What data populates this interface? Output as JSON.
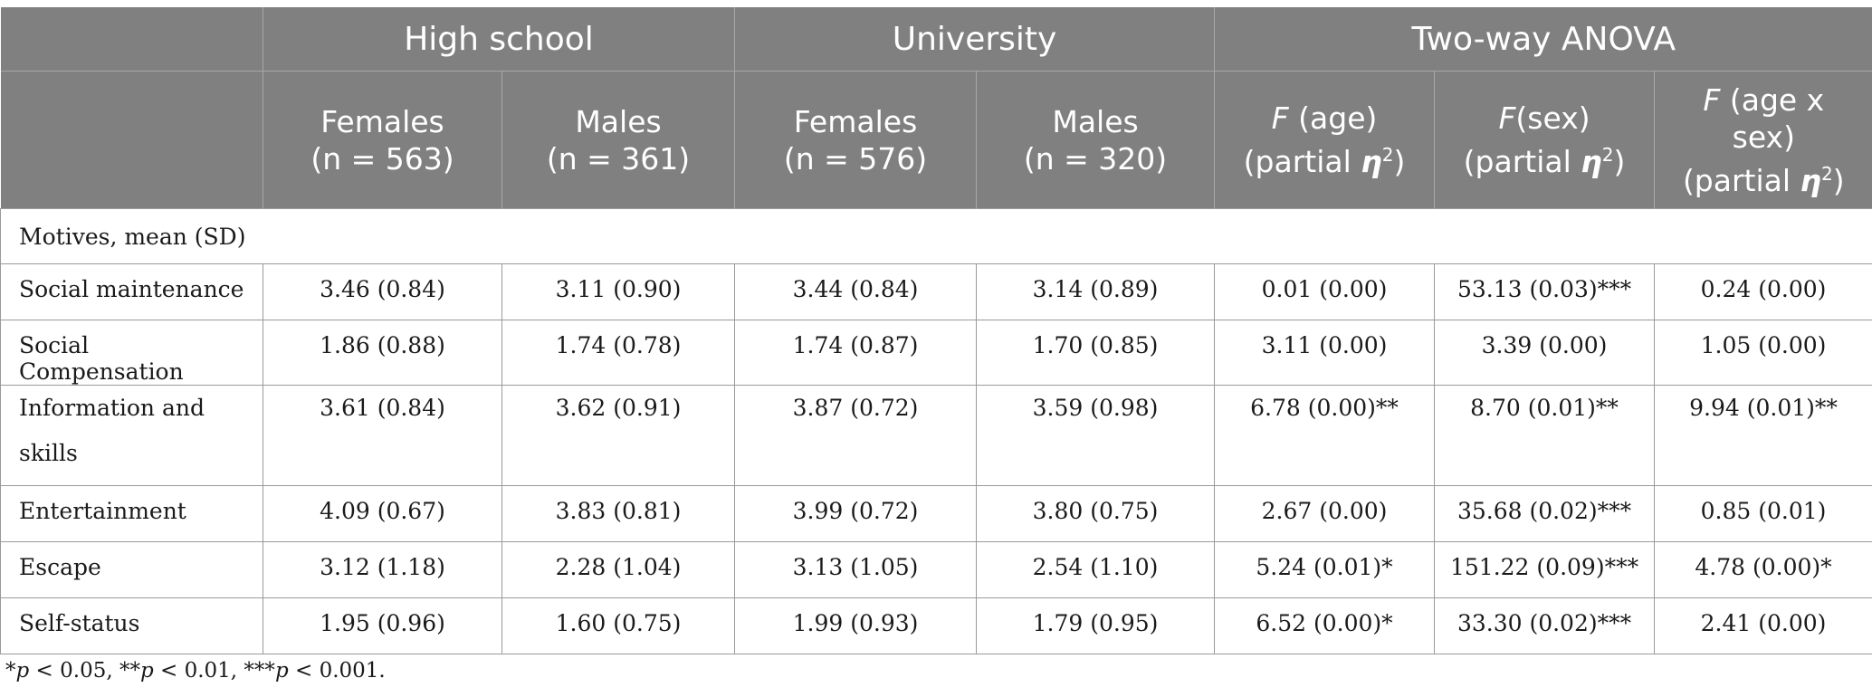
{
  "table": {
    "group_headers": [
      "",
      "High school",
      "University",
      "Two-way ANOVA"
    ],
    "sub_headers": [
      {
        "line1": "Females",
        "line2": "(n = 563)"
      },
      {
        "line1": "Males",
        "line2": "(n = 361)"
      },
      {
        "line1": "Females",
        "line2": "(n = 576)"
      },
      {
        "line1": "Males",
        "line2": "(n = 320)"
      },
      {
        "italic": "F",
        "line1_rest": " (age)",
        "line2_prefix": "(partial ",
        "eta": "η",
        "sup": "2",
        "line2_suffix": ")"
      },
      {
        "italic": "F",
        "line1_rest": "(sex)",
        "line2_prefix": "(partial ",
        "eta": "η",
        "sup": "2",
        "line2_suffix": ")"
      },
      {
        "italic": "F",
        "line1_rest": " (age x",
        "line2": "sex)",
        "line3_prefix": "(partial ",
        "eta": "η",
        "sup": "2",
        "line3_suffix": ")"
      }
    ],
    "section_label": "Motives, mean (SD)",
    "rows": [
      {
        "label": "Social maintenance",
        "cells": [
          "3.46 (0.84)",
          "3.11 (0.90)",
          "3.44 (0.84)",
          "3.14 (0.89)",
          "0.01 (0.00)",
          "53.13 (0.03)***",
          "0.24 (0.00)"
        ]
      },
      {
        "label": "Social Compensation",
        "cells": [
          "1.86 (0.88)",
          "1.74 (0.78)",
          "1.74 (0.87)",
          "1.70 (0.85)",
          "3.11 (0.00)",
          "3.39 (0.00)",
          "1.05 (0.00)"
        ]
      },
      {
        "label": "Information and skills",
        "cells": [
          "3.61 (0.84)",
          "3.62 (0.91)",
          "3.87 (0.72)",
          "3.59 (0.98)",
          "6.78 (0.00)**",
          "8.70 (0.01)**",
          "9.94 (0.01)**"
        ]
      },
      {
        "label": "Entertainment",
        "cells": [
          "4.09 (0.67)",
          "3.83 (0.81)",
          "3.99 (0.72)",
          "3.80 (0.75)",
          "2.67 (0.00)",
          "35.68 (0.02)***",
          "0.85 (0.01)"
        ]
      },
      {
        "label": "Escape",
        "cells": [
          "3.12 (1.18)",
          "2.28 (1.04)",
          "3.13 (1.05)",
          "2.54 (1.10)",
          "5.24 (0.01)*",
          "151.22 (0.09)***",
          "4.78 (0.00)*"
        ]
      },
      {
        "label": "Self-status",
        "cells": [
          "1.95 (0.96)",
          "1.60 (0.75)",
          "1.99 (0.93)",
          "1.79 (0.95)",
          "6.52 (0.00)*",
          "33.30 (0.02)***",
          "2.41 (0.00)"
        ]
      }
    ]
  },
  "footnote": {
    "s1": "*",
    "p1": "p",
    "t1": " < 0.05, **",
    "p2": "p",
    "t2": " < 0.01, ***",
    "p3": "p",
    "t3": " < 0.001."
  }
}
